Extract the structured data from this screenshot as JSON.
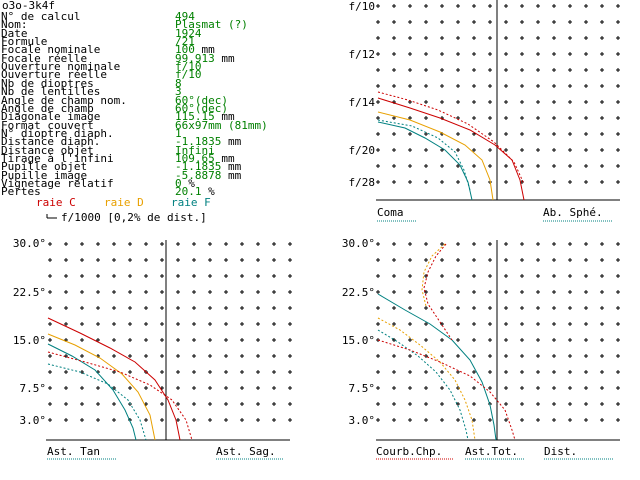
{
  "window": {
    "title": "o3o-3k4f"
  },
  "specs": [
    {
      "label": "N° de calcul",
      "value": "494",
      "unit": ""
    },
    {
      "label": "Nom:",
      "value": "Plasmat (?)",
      "unit": ""
    },
    {
      "label": "Date",
      "value": "1924",
      "unit": ""
    },
    {
      "label": "Formule",
      "value": "/21",
      "unit": ""
    },
    {
      "label": "Focale nominale",
      "value": "100",
      "unit": "mm"
    },
    {
      "label": "Focale réelle",
      "value": "99.913",
      "unit": "mm"
    },
    {
      "label": "Ouverture nominale",
      "value": "f/10",
      "unit": ""
    },
    {
      "label": "Ouverture réelle",
      "value": "f/10",
      "unit": ""
    },
    {
      "label": "Nb de dioptres",
      "value": "8",
      "unit": ""
    },
    {
      "label": "Nb de lentilles",
      "value": "3",
      "unit": ""
    },
    {
      "label": "Angle de champ nom.",
      "value": "60°(dec)",
      "unit": ""
    },
    {
      "label": "Angle de champ",
      "value": "60°(dec)",
      "unit": ""
    },
    {
      "label": "Diagonale image",
      "value": "115.15",
      "unit": "mm"
    },
    {
      "label": "Format couvert",
      "value": "66x97mm (81mm)",
      "unit": ""
    },
    {
      "label": "N° dioptre diaph.",
      "value": "1",
      "unit": ""
    },
    {
      "label": "Distance diaph.",
      "value": "-1.1835",
      "unit": "mm"
    },
    {
      "label": "Distance objet",
      "value": "Infini",
      "unit": ""
    },
    {
      "label": "Tirage à l'infini",
      "value": "109.65",
      "unit": "mm"
    },
    {
      "label": "Pupille objet",
      "value": "-1.1835",
      "unit": "mm"
    },
    {
      "label": "Pupille image",
      "value": "-5.8878",
      "unit": "mm"
    },
    {
      "label": "Vignetage relatif",
      "value": "0",
      "unit": "%"
    },
    {
      "label": "Pertes",
      "value": "20.1",
      "unit": "%"
    }
  ],
  "legend": {
    "scale_note": "f/1000 [0,2% de dist.]",
    "raies": [
      {
        "label": "raie C",
        "color": "#cc0000"
      },
      {
        "label": "raie D",
        "color": "#e8a000"
      },
      {
        "label": "raie F",
        "color": "#008080"
      }
    ]
  },
  "charts": {
    "coma": {
      "y_ticks": [
        "f/10",
        "f/12",
        "f/14",
        "f/20",
        "f/28"
      ],
      "left_label": "Coma",
      "right_label": "Ab. Sphé."
    },
    "astig": {
      "y_ticks": [
        "30.0°",
        "22.5°",
        "15.0°",
        "7.5°",
        "3.0°"
      ],
      "left_label": "Ast. Tan",
      "right_label": "Ast. Sag."
    },
    "field": {
      "y_ticks": [
        "30.0°",
        "22.5°",
        "15.0°",
        "7.5°",
        "3.0°"
      ],
      "left_label": "Courb.Chp.",
      "mid_label": "Ast.Tot.",
      "right_label": "Dist."
    }
  },
  "colors": {
    "C": "#cc0000",
    "D": "#e8a000",
    "F": "#008080",
    "label_green": "#008000"
  }
}
